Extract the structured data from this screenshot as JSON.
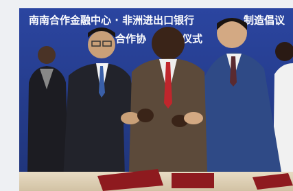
{
  "banner": {
    "line1": "南南合作金融中心 · 非洲进出口银行",
    "line1_end": "制造倡议",
    "line2": "合作协",
    "line2_end": "议仪式"
  }
}
